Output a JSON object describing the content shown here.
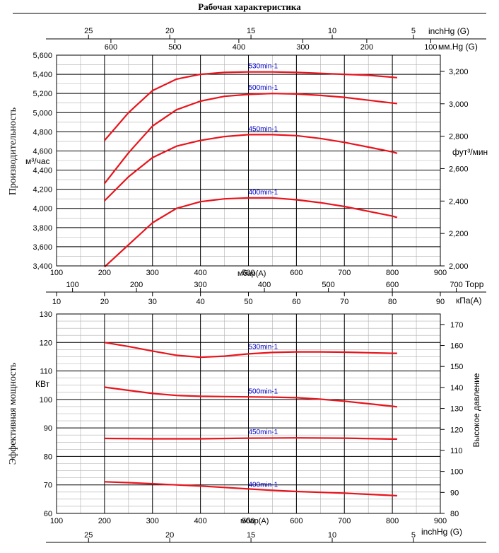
{
  "title": "Рабочая характеристика",
  "top_scales": {
    "inchhg": {
      "ticks": [
        "25",
        "20",
        "15",
        "10",
        "5"
      ],
      "values": [
        25,
        20,
        15,
        10,
        5
      ],
      "unit": "inchHg (G)"
    },
    "mmhg": {
      "ticks": [
        "600",
        "500",
        "400",
        "300",
        "200",
        "100"
      ],
      "values": [
        600,
        500,
        400,
        300,
        200,
        100
      ],
      "unit": "мм.Hg (G)"
    }
  },
  "middle_scales": {
    "mbar": {
      "ticks": [
        "100",
        "200",
        "300",
        "400",
        "500",
        "600",
        "700",
        "800",
        "900"
      ],
      "unit": "мбар(А)"
    },
    "torr": {
      "ticks": [
        "100",
        "200",
        "300",
        "400",
        "500",
        "600",
        "700"
      ],
      "values": [
        100,
        200,
        300,
        400,
        500,
        600,
        700
      ],
      "unit": "Торр"
    },
    "kpa": {
      "ticks": [
        "10",
        "20",
        "30",
        "40",
        "50",
        "60",
        "70",
        "80",
        "90"
      ],
      "values": [
        10,
        20,
        30,
        40,
        50,
        60,
        70,
        80,
        90
      ],
      "unit": "кПа(А)"
    }
  },
  "bottom_scales": {
    "mbar": {
      "ticks": [
        "100",
        "200",
        "300",
        "400",
        "500",
        "600",
        "700",
        "800",
        "900"
      ],
      "unit": "мбар(А)"
    },
    "inchhg": {
      "ticks": [
        "25",
        "20",
        "15",
        "10",
        "5"
      ],
      "values": [
        25,
        20,
        15,
        10,
        5
      ],
      "unit": "inchHg (G)"
    }
  },
  "labels": {
    "capacity": "Производительность",
    "capacity_unit": "м³/час",
    "ft3min_unit": "фут³/мин",
    "power": "Эффективная мощность",
    "power_unit": "КВт",
    "high_pressure": "Высокое давление"
  },
  "chart_data": [
    {
      "type": "line",
      "title": "",
      "xlabel": "мбар(А)",
      "ylabel": "м³/час",
      "xlim": [
        100,
        900
      ],
      "ylim": [
        3400,
        5600
      ],
      "yticks": [
        "3,400",
        "3,600",
        "3,800",
        "4,000",
        "4,200",
        "4,400",
        "4,600",
        "4,800",
        "5,000",
        "5,200",
        "5,400",
        "5,600"
      ],
      "y2label": "фут³/мин",
      "y2lim": [
        2000,
        3300
      ],
      "y2ticks": [
        "2,000",
        "2,200",
        "2,400",
        "2,600",
        "2,800",
        "3,000",
        "3,200"
      ],
      "grid": true,
      "series": [
        {
          "name": "530min-1",
          "x": [
            200,
            250,
            300,
            350,
            400,
            450,
            500,
            550,
            600,
            650,
            700,
            750,
            800,
            810
          ],
          "y": [
            4710,
            5000,
            5230,
            5350,
            5400,
            5420,
            5425,
            5425,
            5420,
            5410,
            5400,
            5390,
            5370,
            5365
          ]
        },
        {
          "name": "500min-1",
          "x": [
            200,
            250,
            300,
            350,
            400,
            450,
            500,
            550,
            600,
            650,
            700,
            750,
            800,
            810
          ],
          "y": [
            4260,
            4580,
            4860,
            5030,
            5120,
            5170,
            5190,
            5200,
            5195,
            5180,
            5160,
            5130,
            5100,
            5095
          ]
        },
        {
          "name": "450min-1",
          "x": [
            200,
            250,
            300,
            350,
            400,
            450,
            500,
            550,
            600,
            650,
            700,
            750,
            800,
            810
          ],
          "y": [
            4080,
            4330,
            4530,
            4650,
            4710,
            4750,
            4770,
            4770,
            4760,
            4730,
            4690,
            4640,
            4590,
            4575
          ]
        },
        {
          "name": "400min-1",
          "x": [
            200,
            250,
            300,
            350,
            400,
            450,
            500,
            550,
            600,
            650,
            700,
            750,
            800,
            810
          ],
          "y": [
            3390,
            3620,
            3850,
            4000,
            4070,
            4100,
            4110,
            4110,
            4090,
            4060,
            4020,
            3970,
            3920,
            3905
          ]
        }
      ]
    },
    {
      "type": "line",
      "title": "",
      "xlabel": "мбар(А)",
      "ylabel": "КВт",
      "xlim": [
        100,
        900
      ],
      "ylim": [
        60,
        130
      ],
      "yticks": [
        "60",
        "70",
        "80",
        "90",
        "100",
        "110",
        "120",
        "130"
      ],
      "y2label": "Высокое давление",
      "y2lim": [
        80,
        175
      ],
      "y2ticks": [
        "80",
        "90",
        "100",
        "110",
        "120",
        "130",
        "140",
        "150",
        "160",
        "170"
      ],
      "grid": true,
      "series": [
        {
          "name": "530min-1",
          "x": [
            200,
            250,
            300,
            350,
            400,
            450,
            500,
            550,
            600,
            650,
            700,
            750,
            800,
            810
          ],
          "y": [
            120,
            118.6,
            117,
            115.5,
            114.8,
            115.2,
            116,
            116.5,
            116.7,
            116.7,
            116.6,
            116.4,
            116.2,
            116.2
          ]
        },
        {
          "name": "500min-1",
          "x": [
            200,
            250,
            300,
            350,
            400,
            450,
            500,
            550,
            600,
            650,
            700,
            750,
            800,
            810
          ],
          "y": [
            104.3,
            103.2,
            102.1,
            101.4,
            101.1,
            101,
            100.9,
            100.8,
            100.6,
            100.1,
            99.4,
            98.5,
            97.6,
            97.4
          ]
        },
        {
          "name": "450min-1",
          "x": [
            200,
            300,
            400,
            500,
            600,
            700,
            800,
            810
          ],
          "y": [
            86.3,
            86.2,
            86.2,
            86.4,
            86.5,
            86.4,
            86.1,
            86.1
          ]
        },
        {
          "name": "400min-1",
          "x": [
            200,
            250,
            300,
            350,
            400,
            450,
            500,
            550,
            600,
            650,
            700,
            750,
            800,
            810
          ],
          "y": [
            71.1,
            70.8,
            70.4,
            70,
            69.6,
            69.1,
            68.6,
            68.1,
            67.7,
            67.4,
            67.1,
            66.7,
            66.3,
            66.2
          ]
        }
      ]
    }
  ],
  "colors": {
    "curve": "#e8141c",
    "curve_label": "#0000cc",
    "axis": "#000000",
    "grid": "#b0b0b0"
  }
}
